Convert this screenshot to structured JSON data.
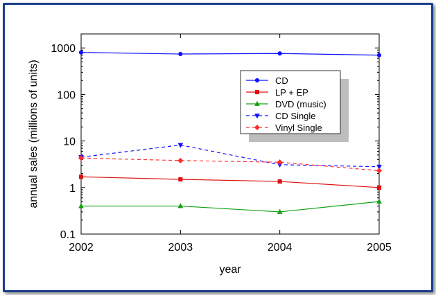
{
  "chart_data": {
    "type": "line",
    "title": "",
    "xlabel": "year",
    "ylabel": "annual sales (millions of units)",
    "yscale": "log",
    "ylim": [
      0.1,
      2000
    ],
    "xlim": [
      2002,
      2005
    ],
    "x": [
      2002,
      2003,
      2004,
      2005
    ],
    "x_tick_labels": [
      "2002",
      "2003",
      "2004",
      "2005"
    ],
    "y_ticks": [
      0.1,
      1,
      10,
      100,
      1000
    ],
    "y_tick_labels": [
      "0.1",
      "1",
      "10",
      "100",
      "1000"
    ],
    "legend_position": "upper-center",
    "series": [
      {
        "name": "CD",
        "values": [
          800,
          740,
          760,
          700
        ],
        "color": "#1010ff",
        "dashed": false,
        "marker": "circle"
      },
      {
        "name": "LP + EP",
        "values": [
          1.7,
          1.5,
          1.35,
          1.0
        ],
        "color": "#e01010",
        "dashed": false,
        "marker": "square"
      },
      {
        "name": "DVD (music)",
        "values": [
          0.4,
          0.4,
          0.3,
          0.5
        ],
        "color": "#10a010",
        "dashed": false,
        "marker": "triangle-up"
      },
      {
        "name": "CD Single",
        "values": [
          4.5,
          8.2,
          3.1,
          2.8
        ],
        "color": "#1010ff",
        "dashed": true,
        "marker": "triangle-down"
      },
      {
        "name": "Vinyl Single",
        "values": [
          4.3,
          3.8,
          3.5,
          2.3
        ],
        "color": "#ff3030",
        "dashed": true,
        "marker": "diamond"
      }
    ]
  }
}
